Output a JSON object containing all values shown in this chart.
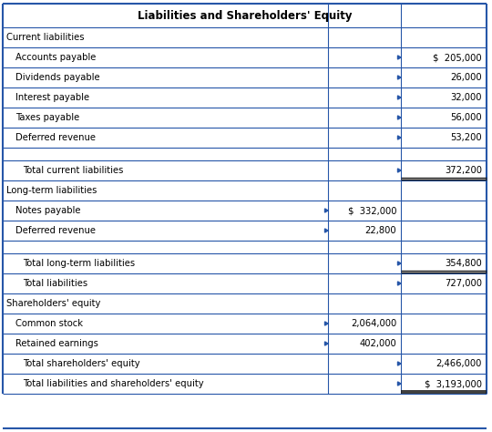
{
  "title": "Liabilities and Shareholders' Equity",
  "rows": [
    {
      "label": "Current liabilities",
      "col1": "",
      "col2": "",
      "type": "section_header",
      "indent": 0
    },
    {
      "label": "Accounts payable",
      "col1": "",
      "col2": "$  205,000",
      "type": "item",
      "indent": 1
    },
    {
      "label": "Dividends payable",
      "col1": "",
      "col2": "26,000",
      "type": "item",
      "indent": 1
    },
    {
      "label": "Interest payable",
      "col1": "",
      "col2": "32,000",
      "type": "item",
      "indent": 1
    },
    {
      "label": "Taxes payable",
      "col1": "",
      "col2": "56,000",
      "type": "item",
      "indent": 1
    },
    {
      "label": "Deferred revenue",
      "col1": "",
      "col2": "53,200",
      "type": "item",
      "indent": 1
    },
    {
      "label": "",
      "col1": "",
      "col2": "",
      "type": "blank",
      "indent": 0
    },
    {
      "label": "Total current liabilities",
      "col1": "",
      "col2": "372,200",
      "type": "total",
      "indent": 2
    },
    {
      "label": "Long-term liabilities",
      "col1": "",
      "col2": "",
      "type": "section_header",
      "indent": 0
    },
    {
      "label": "Notes payable",
      "col1": "$  332,000",
      "col2": "",
      "type": "item",
      "indent": 1
    },
    {
      "label": "Deferred revenue",
      "col1": "22,800",
      "col2": "",
      "type": "item",
      "indent": 1
    },
    {
      "label": "",
      "col1": "",
      "col2": "",
      "type": "blank",
      "indent": 0
    },
    {
      "label": "Total long-term liabilities",
      "col1": "",
      "col2": "354,800",
      "type": "total",
      "indent": 2
    },
    {
      "label": "Total liabilities",
      "col1": "",
      "col2": "727,000",
      "type": "total",
      "indent": 2
    },
    {
      "label": "Shareholders' equity",
      "col1": "",
      "col2": "",
      "type": "section_header",
      "indent": 0
    },
    {
      "label": "Common stock",
      "col1": "2,064,000",
      "col2": "",
      "type": "item",
      "indent": 1
    },
    {
      "label": "Retained earnings",
      "col1": "402,000",
      "col2": "",
      "type": "item",
      "indent": 1
    },
    {
      "label": "Total shareholders' equity",
      "col1": "",
      "col2": "2,466,000",
      "type": "total",
      "indent": 2
    },
    {
      "label": "Total liabilities and shareholders' equity",
      "col1": "",
      "col2": "$  3,193,000",
      "type": "total_final",
      "indent": 2
    }
  ],
  "border_color": "#2656a8",
  "line_color_dark": "#1a1a1a",
  "text_color": "#000000",
  "fig_w": 5.4,
  "fig_h": 4.74,
  "dpi": 100
}
